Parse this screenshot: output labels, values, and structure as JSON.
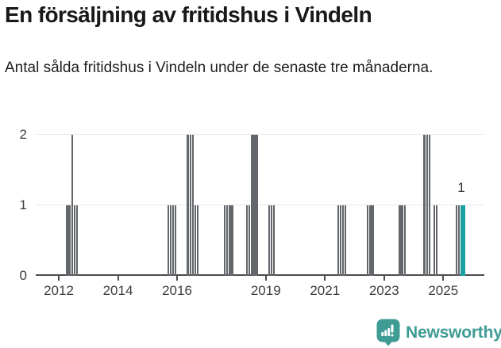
{
  "header": {
    "title": "En försäljning av fritidshus i Vindeln",
    "subtitle": "Antal sålda fritidshus i Vindeln under de senaste tre månaderna."
  },
  "chart_data": {
    "type": "bar",
    "title": "En försäljning av fritidshus i Vindeln",
    "subtitle": "Antal sålda fritidshus i Vindeln under de senaste tre månaderna.",
    "xlabel": "",
    "ylabel": "",
    "ylim": [
      0,
      2
    ],
    "y_ticks": [
      0,
      1,
      2
    ],
    "x_tick_years": [
      2012,
      2014,
      2016,
      2019,
      2021,
      2023,
      2025
    ],
    "grid": "horizontal",
    "legend": "none",
    "bar_color": "#63666b",
    "highlight_color": "#18a19e",
    "axis_color": "#4c4c4c",
    "points": [
      {
        "month": "2012-04",
        "value": 1
      },
      {
        "month": "2012-05",
        "value": 1
      },
      {
        "month": "2012-06",
        "value": 2
      },
      {
        "month": "2012-07",
        "value": 1
      },
      {
        "month": "2012-08",
        "value": 1
      },
      {
        "month": "2015-09",
        "value": 1
      },
      {
        "month": "2015-10",
        "value": 1
      },
      {
        "month": "2015-11",
        "value": 1
      },
      {
        "month": "2015-12",
        "value": 1
      },
      {
        "month": "2016-05",
        "value": 2
      },
      {
        "month": "2016-06",
        "value": 2
      },
      {
        "month": "2016-07",
        "value": 2
      },
      {
        "month": "2016-08",
        "value": 1
      },
      {
        "month": "2016-09",
        "value": 1
      },
      {
        "month": "2017-08",
        "value": 1
      },
      {
        "month": "2017-09",
        "value": 1
      },
      {
        "month": "2017-10",
        "value": 1
      },
      {
        "month": "2017-11",
        "value": 1
      },
      {
        "month": "2018-05",
        "value": 1
      },
      {
        "month": "2018-06",
        "value": 1
      },
      {
        "month": "2018-07",
        "value": 2
      },
      {
        "month": "2018-08",
        "value": 2
      },
      {
        "month": "2018-09",
        "value": 2
      },
      {
        "month": "2019-02",
        "value": 1
      },
      {
        "month": "2019-03",
        "value": 1
      },
      {
        "month": "2019-04",
        "value": 1
      },
      {
        "month": "2021-06",
        "value": 1
      },
      {
        "month": "2021-07",
        "value": 1
      },
      {
        "month": "2021-08",
        "value": 1
      },
      {
        "month": "2021-09",
        "value": 1
      },
      {
        "month": "2022-06",
        "value": 1
      },
      {
        "month": "2022-07",
        "value": 1
      },
      {
        "month": "2022-08",
        "value": 1
      },
      {
        "month": "2023-07",
        "value": 1
      },
      {
        "month": "2023-08",
        "value": 1
      },
      {
        "month": "2023-09",
        "value": 1
      },
      {
        "month": "2024-05",
        "value": 2
      },
      {
        "month": "2024-06",
        "value": 2
      },
      {
        "month": "2024-07",
        "value": 2
      },
      {
        "month": "2024-09",
        "value": 1
      },
      {
        "month": "2024-10",
        "value": 1
      },
      {
        "month": "2025-06",
        "value": 1
      },
      {
        "month": "2025-07",
        "value": 1
      },
      {
        "month": "2025-08",
        "value": 1
      },
      {
        "month": "2025-09",
        "value": 1
      }
    ],
    "highlight_months": [
      "2025-08",
      "2025-09"
    ],
    "annotation": {
      "text": "1",
      "month": "2025-08",
      "value": 1
    }
  },
  "footer": {
    "brand": "Newsworthy",
    "logo_color": "#3f9c95"
  }
}
